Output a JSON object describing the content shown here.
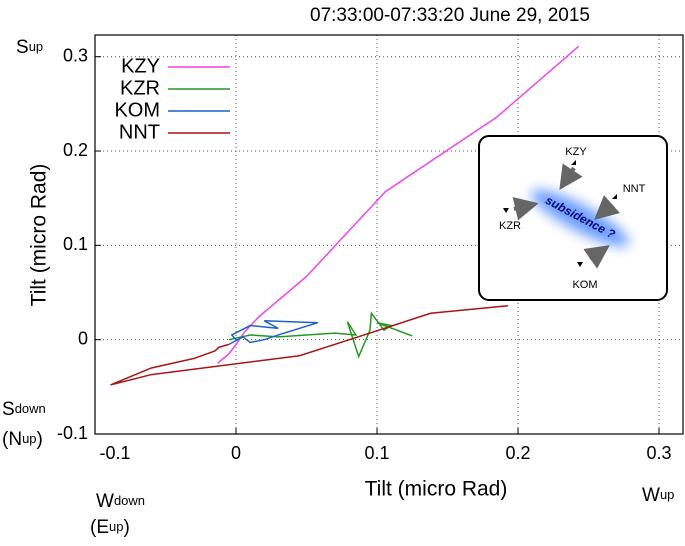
{
  "chart_data": {
    "type": "line",
    "title": "07:33:00-07:33:20 June 29, 2015",
    "x_label": "Tilt (micro Rad)",
    "y_label": "Tilt (micro Rad)",
    "xlim": [
      -0.1,
      0.317
    ],
    "ylim": [
      -0.1,
      0.323
    ],
    "xticks": [
      -0.1,
      0,
      0.1,
      0.2,
      0.3
    ],
    "yticks": [
      -0.1,
      0,
      0.1,
      0.2,
      0.3
    ],
    "grid": true,
    "legend": "upper left",
    "series": [
      {
        "name": "KZY",
        "color": "#ee44ee",
        "x": [
          -0.013,
          -0.005,
          0,
          0.006,
          0.016,
          0.05,
          0.106,
          0.185,
          0.243
        ],
        "values": [
          -0.025,
          -0.015,
          -0.005,
          0.008,
          0.024,
          0.067,
          0.157,
          0.236,
          0.311
        ]
      },
      {
        "name": "KZR",
        "color": "#229922",
        "x": [
          -0.005,
          0.01,
          0.03,
          0.05,
          0.07,
          0.085,
          0.079,
          0.087,
          0.095,
          0.096,
          0.105,
          0.11,
          0.1,
          0.125
        ],
        "values": [
          0,
          0.005,
          0.003,
          0.005,
          0.007,
          0.005,
          0.019,
          -0.018,
          0.01,
          0.028,
          0.01,
          0.015,
          0.018,
          0.004
        ]
      },
      {
        "name": "KOM",
        "color": "#1f5fd0",
        "x": [
          0,
          -0.003,
          0.01,
          0.03,
          0.02,
          0.058,
          0.03,
          0.02,
          0.01,
          0.005,
          -0.005
        ],
        "values": [
          0,
          0.005,
          0.015,
          0.012,
          0.02,
          0.018,
          0.005,
          0,
          -0.003,
          0.003,
          -0.005
        ]
      },
      {
        "name": "NNT",
        "color": "#aa1515",
        "x": [
          -0.005,
          -0.012,
          -0.015,
          -0.03,
          -0.06,
          -0.089,
          -0.06,
          0.045,
          0.095,
          0.138,
          0.193
        ],
        "values": [
          -0.005,
          -0.008,
          -0.012,
          -0.02,
          -0.03,
          -0.048,
          -0.037,
          -0.017,
          0.007,
          0.028,
          0.036
        ]
      }
    ],
    "annotations": [
      {
        "parts": [
          "S",
          "up"
        ]
      },
      {
        "parts": [
          "S",
          "down"
        ]
      },
      {
        "parts": [
          "(N",
          "up",
          ")"
        ]
      },
      {
        "parts": [
          "W",
          "down"
        ]
      },
      {
        "parts": [
          "(E",
          "up",
          ")"
        ]
      },
      {
        "parts": [
          "W",
          "up"
        ]
      }
    ],
    "inset": {
      "stations": [
        "KZY",
        "NNT",
        "KZR",
        "KOM"
      ],
      "label": "subsidence ?"
    }
  }
}
